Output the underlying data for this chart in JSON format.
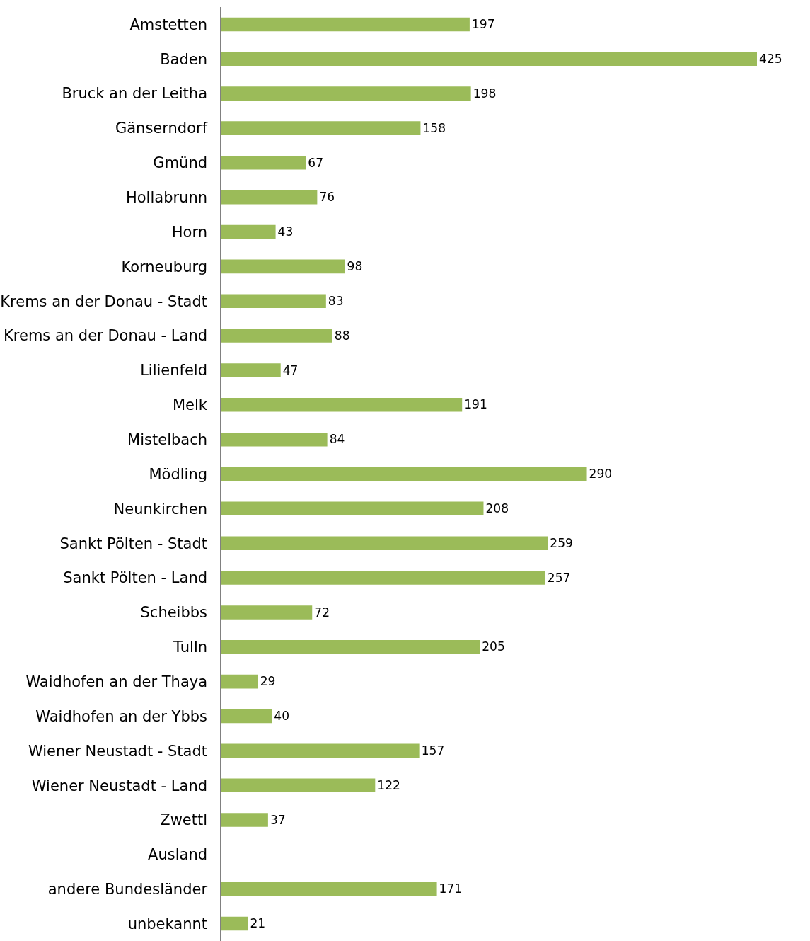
{
  "chart_data": {
    "type": "bar",
    "orientation": "horizontal",
    "data_labels": true,
    "color": "#9bbb59",
    "categories": [
      "Amstetten",
      "Baden",
      "Bruck an der Leitha",
      "Gänserndorf",
      "Gmünd",
      "Hollabrunn",
      "Horn",
      "Korneuburg",
      "Krems an der Donau - Stadt",
      "Krems an der Donau - Land",
      "Lilienfeld",
      "Melk",
      "Mistelbach",
      "Mödling",
      "Neunkirchen",
      "Sankt Pölten - Stadt",
      "Sankt Pölten - Land",
      "Scheibbs",
      "Tulln",
      "Waidhofen an der Thaya",
      "Waidhofen an der Ybbs",
      "Wiener Neustadt - Stadt",
      "Wiener Neustadt - Land",
      "Zwettl",
      "Ausland",
      "andere Bundesländer",
      "unbekannt"
    ],
    "values": [
      197,
      425,
      198,
      158,
      67,
      76,
      43,
      98,
      83,
      88,
      47,
      191,
      84,
      290,
      208,
      259,
      257,
      72,
      205,
      29,
      40,
      157,
      122,
      37,
      null,
      171,
      21
    ]
  }
}
